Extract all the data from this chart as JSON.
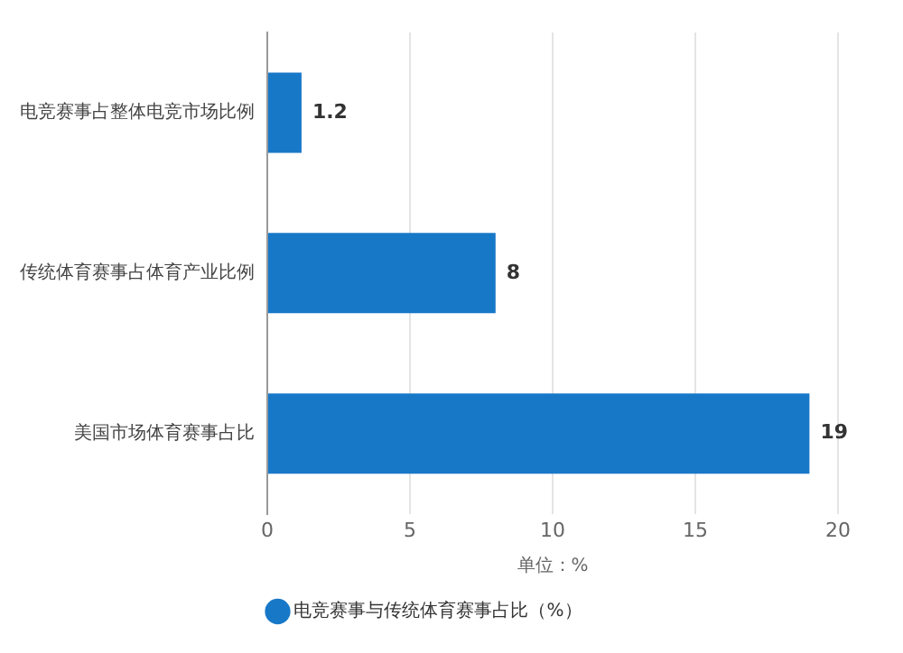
{
  "chart_data": {
    "type": "bar",
    "orientation": "horizontal",
    "categories": [
      "电竞赛事占整体电竞市场比例",
      "传统体育赛事占体育产业比例",
      "美国市场体育赛事占比"
    ],
    "series": [
      {
        "name": "电竞赛事与传统体育赛事占比（%）",
        "color": "#1878c8",
        "values": [
          1.2,
          8,
          19
        ]
      }
    ],
    "xlim": [
      0,
      20
    ],
    "xticks": [
      0,
      5,
      10,
      15,
      20
    ],
    "xlabel": "单位：%",
    "grid": "x",
    "legend": "bottom",
    "data_labels": true
  }
}
